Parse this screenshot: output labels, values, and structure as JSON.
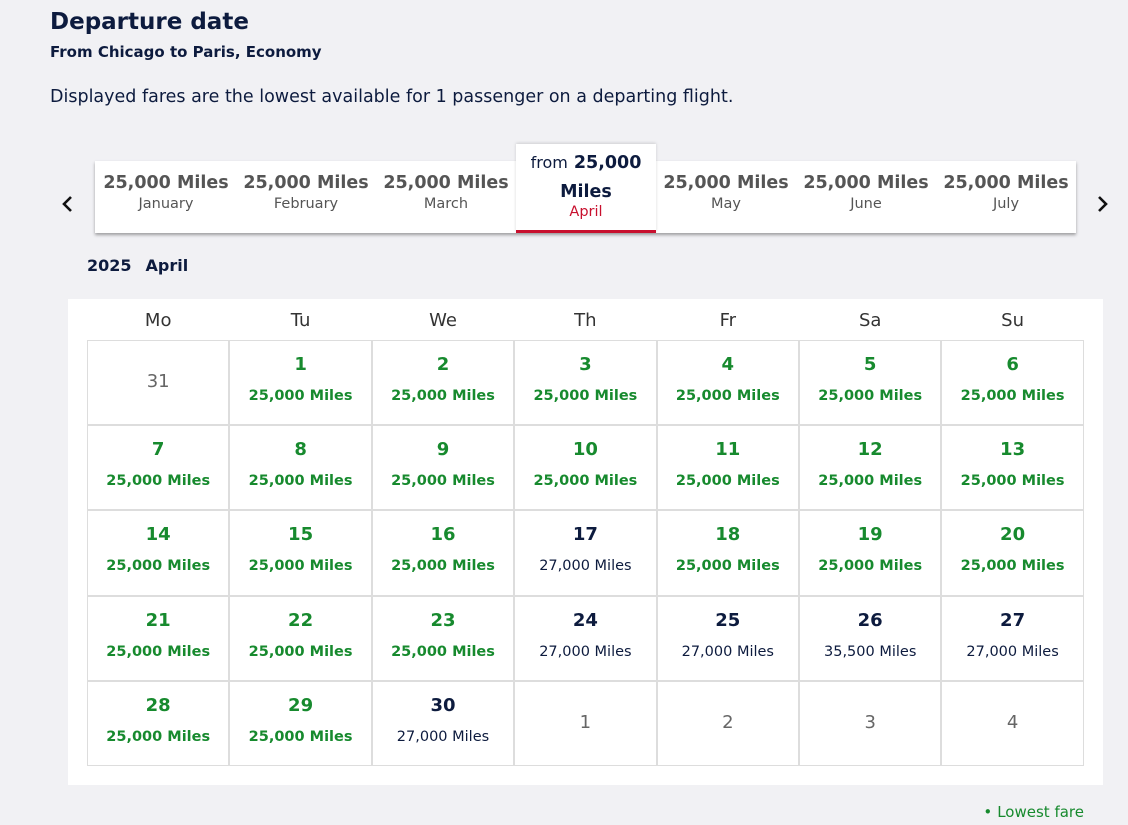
{
  "header": {
    "title": "Departure date",
    "subtitle": "From Chicago to Paris, Economy"
  },
  "note": "Displayed fares are the lowest available for 1 passenger on a departing flight.",
  "months": [
    {
      "fare": "25,000 Miles",
      "month": "January"
    },
    {
      "fare": "25,000 Miles",
      "month": "February"
    },
    {
      "fare": "25,000 Miles",
      "month": "March"
    },
    {
      "prefix": "from",
      "fare": "25,000 Miles",
      "month": "April",
      "selected": true
    },
    {
      "fare": "25,000 Miles",
      "month": "May"
    },
    {
      "fare": "25,000 Miles",
      "month": "June"
    },
    {
      "fare": "25,000 Miles",
      "month": "July"
    }
  ],
  "calendar": {
    "year": "2025",
    "month": "April",
    "weekdays": [
      "Mo",
      "Tu",
      "We",
      "Th",
      "Fr",
      "Sa",
      "Su"
    ],
    "weeks": [
      [
        {
          "day": 31,
          "outside": true
        },
        {
          "day": 1,
          "fare": "25,000 Miles",
          "lowest": true
        },
        {
          "day": 2,
          "fare": "25,000 Miles",
          "lowest": true
        },
        {
          "day": 3,
          "fare": "25,000 Miles",
          "lowest": true
        },
        {
          "day": 4,
          "fare": "25,000 Miles",
          "lowest": true
        },
        {
          "day": 5,
          "fare": "25,000 Miles",
          "lowest": true
        },
        {
          "day": 6,
          "fare": "25,000 Miles",
          "lowest": true
        }
      ],
      [
        {
          "day": 7,
          "fare": "25,000 Miles",
          "lowest": true
        },
        {
          "day": 8,
          "fare": "25,000 Miles",
          "lowest": true
        },
        {
          "day": 9,
          "fare": "25,000 Miles",
          "lowest": true
        },
        {
          "day": 10,
          "fare": "25,000 Miles",
          "lowest": true
        },
        {
          "day": 11,
          "fare": "25,000 Miles",
          "lowest": true
        },
        {
          "day": 12,
          "fare": "25,000 Miles",
          "lowest": true
        },
        {
          "day": 13,
          "fare": "25,000 Miles",
          "lowest": true
        }
      ],
      [
        {
          "day": 14,
          "fare": "25,000 Miles",
          "lowest": true
        },
        {
          "day": 15,
          "fare": "25,000 Miles",
          "lowest": true
        },
        {
          "day": 16,
          "fare": "25,000 Miles",
          "lowest": true
        },
        {
          "day": 17,
          "fare": "27,000 Miles"
        },
        {
          "day": 18,
          "fare": "25,000 Miles",
          "lowest": true
        },
        {
          "day": 19,
          "fare": "25,000 Miles",
          "lowest": true
        },
        {
          "day": 20,
          "fare": "25,000 Miles",
          "lowest": true
        }
      ],
      [
        {
          "day": 21,
          "fare": "25,000 Miles",
          "lowest": true
        },
        {
          "day": 22,
          "fare": "25,000 Miles",
          "lowest": true
        },
        {
          "day": 23,
          "fare": "25,000 Miles",
          "lowest": true
        },
        {
          "day": 24,
          "fare": "27,000 Miles"
        },
        {
          "day": 25,
          "fare": "27,000 Miles"
        },
        {
          "day": 26,
          "fare": "35,500 Miles"
        },
        {
          "day": 27,
          "fare": "27,000 Miles"
        }
      ],
      [
        {
          "day": 28,
          "fare": "25,000 Miles",
          "lowest": true
        },
        {
          "day": 29,
          "fare": "25,000 Miles",
          "lowest": true
        },
        {
          "day": 30,
          "fare": "27,000 Miles"
        },
        {
          "day": 1,
          "outside": true
        },
        {
          "day": 2,
          "outside": true
        },
        {
          "day": 3,
          "outside": true
        },
        {
          "day": 4,
          "outside": true
        }
      ]
    ]
  },
  "legend": "Lowest fare"
}
